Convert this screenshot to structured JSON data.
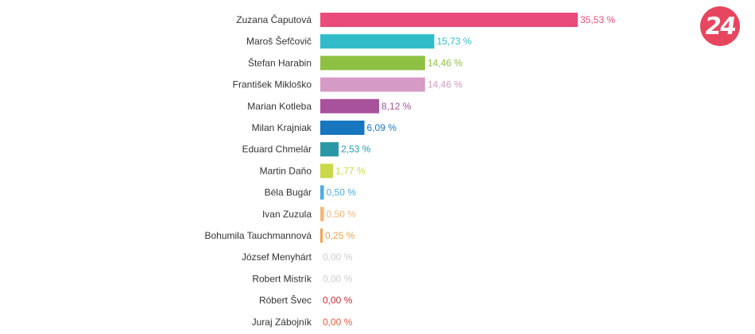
{
  "logo": {
    "text": "24",
    "color": "#e7465e"
  },
  "chart_data": {
    "type": "bar",
    "orientation": "horizontal",
    "title": "",
    "xlabel": "",
    "ylabel": "",
    "xlim": [
      0,
      35.53
    ],
    "grid": false,
    "legend": "none",
    "categories": [
      "Zuzana Čaputová",
      "Maroš Šefčovič",
      "Štefan Harabin",
      "František Mikloško",
      "Marian Kotleba",
      "Milan Krajniak",
      "Eduard Chmelár",
      "Martin Daňo",
      "Béla Bugár",
      "Ivan Zuzula",
      "Bohumila Tauchmannová",
      "József Menyhárt",
      "Robert Mistrík",
      "Róbert Švec",
      "Juraj Zábojník"
    ],
    "values": [
      35.53,
      15.73,
      14.46,
      14.46,
      8.12,
      6.09,
      2.53,
      1.77,
      0.5,
      0.5,
      0.25,
      0.0,
      0.0,
      0.0,
      0.0
    ],
    "value_labels": [
      "35,53 %",
      "15,73 %",
      "14,46 %",
      "14,46 %",
      "8,12 %",
      "6,09 %",
      "2,53 %",
      "1,77 %",
      "0,50 %",
      "0,50 %",
      "0,25 %",
      "0,00 %",
      "0,00 %",
      "0,00 %",
      "0,00 %"
    ],
    "colors": [
      "#e94b7b",
      "#2fbcc8",
      "#8dc043",
      "#d69ac7",
      "#a9529c",
      "#1776be",
      "#2a98a4",
      "#cbd84a",
      "#4baee3",
      "#f5b67a",
      "#f0a24c",
      "#cccccc",
      "#cccccc",
      "#c22e3b",
      "#e85d3d"
    ]
  }
}
